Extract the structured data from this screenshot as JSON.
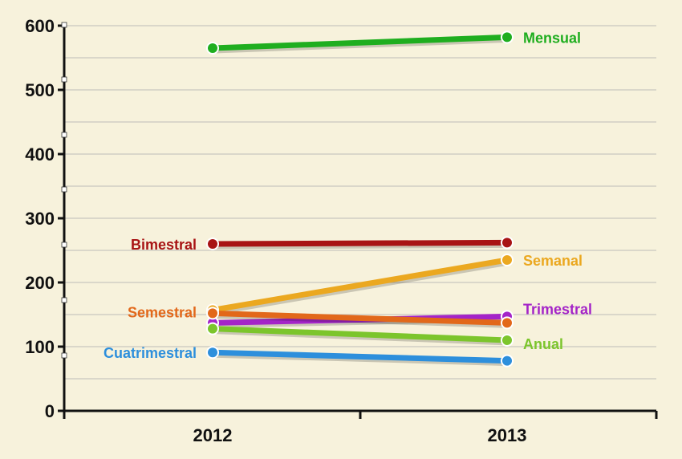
{
  "chart_data": {
    "type": "line",
    "title": "",
    "xlabel": "",
    "ylabel": "",
    "categories": [
      "2012",
      "2013"
    ],
    "ylim": [
      0,
      600
    ],
    "y_ticks": [
      "0",
      "100",
      "200",
      "300",
      "400",
      "500",
      "600"
    ],
    "grid": true,
    "colors": {
      "background": "#f7f2dc",
      "grid": "#c9c7bf",
      "axis": "#111111"
    },
    "series": [
      {
        "name": "Mensual",
        "values": [
          565,
          582
        ],
        "color": "#1fae1f",
        "label_side": "right"
      },
      {
        "name": "Bimestral",
        "values": [
          260,
          262
        ],
        "color": "#a81414",
        "label_side": "left"
      },
      {
        "name": "Semanal",
        "values": [
          157,
          235
        ],
        "color": "#eba820",
        "label_side": "right"
      },
      {
        "name": "Trimestral",
        "values": [
          137,
          147
        ],
        "color": "#a424c8",
        "label_side": "right"
      },
      {
        "name": "Semestral",
        "values": [
          152,
          137
        ],
        "color": "#e2681a",
        "label_side": "left"
      },
      {
        "name": "Anual",
        "values": [
          128,
          110
        ],
        "color": "#7cc52c",
        "label_side": "right"
      },
      {
        "name": "Cuatrimestral",
        "values": [
          91,
          78
        ],
        "color": "#2d8fdc",
        "label_side": "left"
      }
    ]
  }
}
